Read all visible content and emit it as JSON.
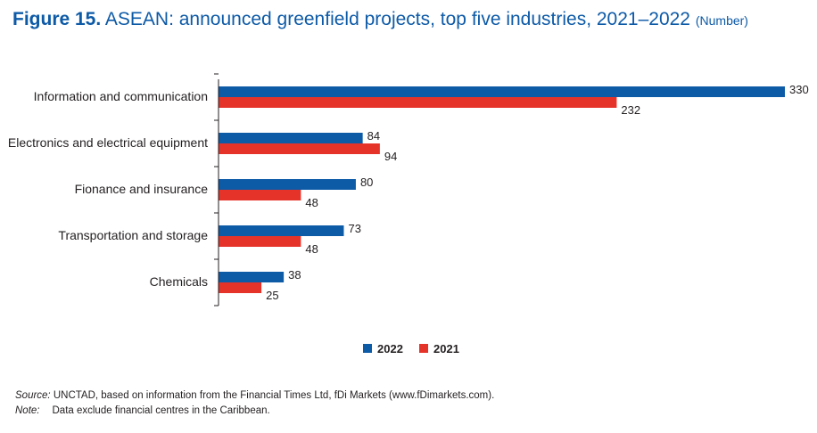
{
  "title": {
    "figure": "Figure 15.",
    "text": "ASEAN: announced greenfield projects, top five industries, 2021–2022",
    "unit": "(Number)"
  },
  "colors": {
    "2022": "#0d5aa7",
    "2021": "#e63329",
    "axis": "#231f20"
  },
  "chart_data": {
    "type": "bar",
    "orientation": "horizontal",
    "categories": [
      "Information and communication",
      "Electronics and electrical equipment",
      "Fionance and insurance",
      "Transportation and storage",
      "Chemicals"
    ],
    "series": [
      {
        "name": "2022",
        "values": [
          330,
          84,
          80,
          73,
          38
        ]
      },
      {
        "name": "2021",
        "values": [
          232,
          94,
          48,
          48,
          25
        ]
      }
    ],
    "xlim": [
      0,
      330
    ],
    "grid": false,
    "legend": "bottom-center",
    "data_labels": true
  },
  "footer": {
    "source_key": "Source:",
    "source_text": " UNCTAD, based on information from the Financial Times Ltd, fDi Markets (www.fDimarkets.com).",
    "note_key": "Note:",
    "note_text": "Data exclude financial centres in the Caribbean."
  }
}
